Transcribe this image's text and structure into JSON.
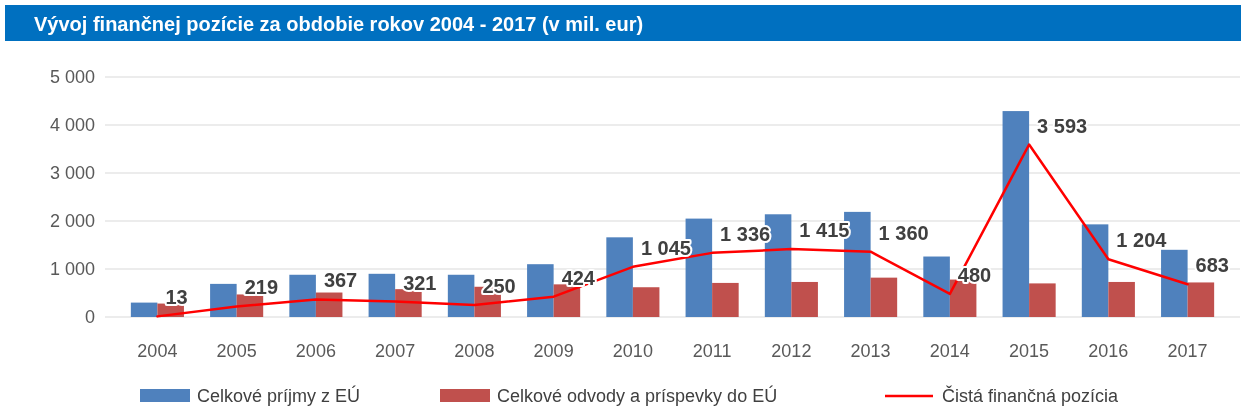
{
  "chart_data": {
    "type": "bar",
    "title": "Vývoj finančnej pozície za obdobie rokov 2004 - 2017 (v mil. eur)",
    "categories": [
      "2004",
      "2005",
      "2006",
      "2007",
      "2008",
      "2009",
      "2010",
      "2011",
      "2012",
      "2013",
      "2014",
      "2015",
      "2016",
      "2017"
    ],
    "series": [
      {
        "name": "Celkové príjmy z EÚ",
        "color": "#4f81bd",
        "values": [
          300,
          690,
          880,
          900,
          880,
          1100,
          1660,
          2050,
          2140,
          2190,
          1260,
          4290,
          1930,
          1400
        ]
      },
      {
        "name": "Celkové odvody a príspevky do EÚ",
        "color": "#c0504d",
        "values": [
          280,
          470,
          510,
          580,
          630,
          680,
          620,
          710,
          730,
          820,
          780,
          700,
          730,
          720
        ]
      },
      {
        "name": "Čistá finančná pozícia",
        "type": "line",
        "color": "#ff0000",
        "values": [
          13,
          219,
          367,
          321,
          250,
          424,
          1045,
          1336,
          1415,
          1360,
          480,
          3593,
          1204,
          683
        ],
        "value_labels": [
          "13",
          "219",
          "367",
          "321",
          "250",
          "424",
          "1 045",
          "1 336",
          "1 415",
          "1 360",
          "480",
          "3 593",
          "1 204",
          "683"
        ]
      }
    ],
    "ylim": [
      0,
      5000
    ],
    "yticks": [
      0,
      {
        "value": 1000,
        "label": "1 000"
      },
      {
        "value": 2000,
        "label": "2 000"
      },
      {
        "value": 3000,
        "label": "3 000"
      },
      {
        "value": 4000,
        "label": "4 000"
      },
      {
        "value": 5000,
        "label": "5 000"
      }
    ],
    "grid": "y",
    "legend": "bottom",
    "marker": "none"
  }
}
